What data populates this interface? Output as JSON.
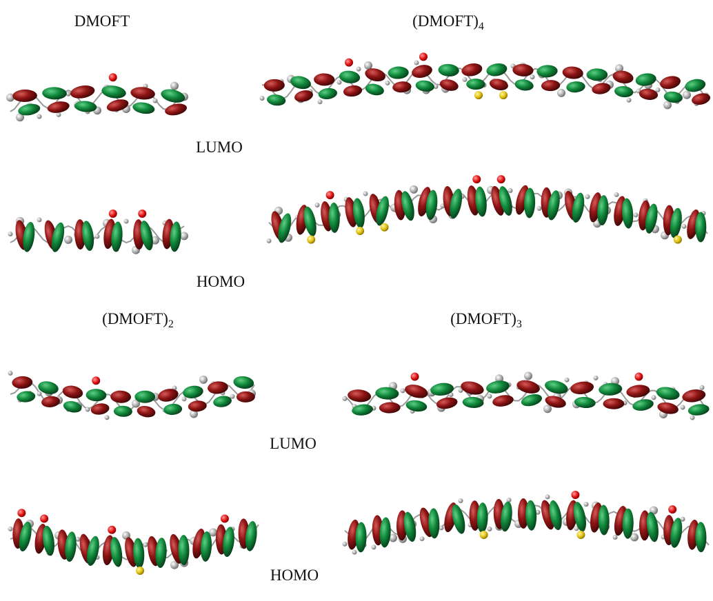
{
  "titles": [
    {
      "text": "DMOFT"
    },
    {
      "text": "(DMOFT)",
      "subscript": "4"
    },
    {
      "text": "(DMOFT)",
      "subscript": "2"
    },
    {
      "text": "(DMOFT)",
      "subscript": "3"
    }
  ],
  "orbital_labels": [
    "LUMO",
    "HOMO",
    "LUMO",
    "HOMO"
  ]
}
